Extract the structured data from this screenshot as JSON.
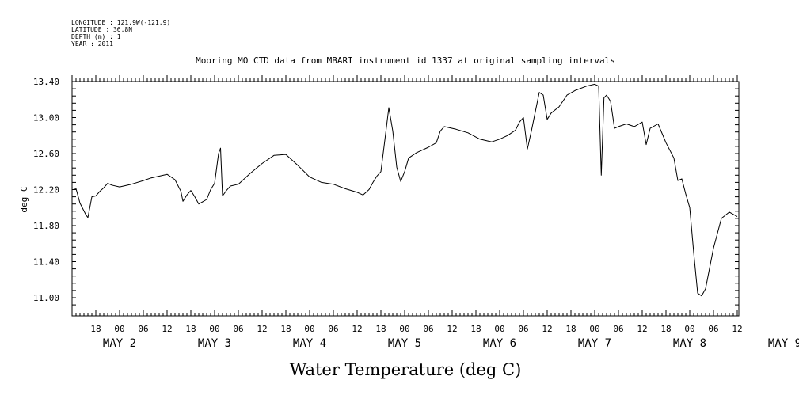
{
  "header": {
    "lines": [
      "LONGITUDE : 121.9W(-121.9)",
      "LATITUDE : 36.8N",
      "DEPTH (m) : 1",
      "YEAR : 2011"
    ]
  },
  "chart_data": {
    "type": "line",
    "title": "Mooring MO CTD data from MBARI instrument id 1337 at original sampling intervals",
    "xlabel": "Water Temperature (deg C)",
    "ylabel": "deg C",
    "ylim": [
      10.85,
      13.4
    ],
    "yticks": [
      "13.40",
      "13.00",
      "12.60",
      "12.20",
      "11.80",
      "11.40",
      "11.00"
    ],
    "xlim": [
      "2011-05-01T12:00",
      "2011-05-08T14:00"
    ],
    "hour_ticks": [
      "18",
      "00",
      "06",
      "12",
      "18",
      "00",
      "06",
      "12",
      "18",
      "00",
      "06",
      "12",
      "18",
      "00",
      "06",
      "12",
      "18",
      "00",
      "06",
      "12",
      "18",
      "00",
      "06",
      "12",
      "18",
      "00",
      "06",
      "12"
    ],
    "day_labels": [
      {
        "text": "MAY  2",
        "x": "2011-05-02T00:00"
      },
      {
        "text": "MAY  3",
        "x": "2011-05-03T00:00"
      },
      {
        "text": "MAY  4",
        "x": "2011-05-04T00:00"
      },
      {
        "text": "MAY  5",
        "x": "2011-05-05T00:00"
      },
      {
        "text": "MAY  6",
        "x": "2011-05-06T00:00"
      },
      {
        "text": "MAY  7",
        "x": "2011-05-07T00:00"
      },
      {
        "text": "MAY  8",
        "x": "2011-05-08T00:00"
      },
      {
        "text": "MAY  9",
        "x": "2011-05-09T00:00"
      }
    ],
    "grid": false,
    "series": [
      {
        "color": "#000000",
        "points": [
          [
            "2011-05-01T12:00",
            12.22
          ],
          [
            "2011-05-01T13:00",
            12.21
          ],
          [
            "2011-05-01T14:00",
            12.05
          ],
          [
            "2011-05-01T15:30",
            11.92
          ],
          [
            "2011-05-01T16:00",
            11.89
          ],
          [
            "2011-05-01T17:00",
            12.12
          ],
          [
            "2011-05-01T18:00",
            12.13
          ],
          [
            "2011-05-01T19:00",
            12.18
          ],
          [
            "2011-05-01T20:00",
            12.22
          ],
          [
            "2011-05-01T21:00",
            12.27
          ],
          [
            "2011-05-01T22:00",
            12.25
          ],
          [
            "2011-05-02T00:00",
            12.23
          ],
          [
            "2011-05-02T03:00",
            12.26
          ],
          [
            "2011-05-02T06:00",
            12.3
          ],
          [
            "2011-05-02T08:00",
            12.33
          ],
          [
            "2011-05-02T12:00",
            12.37
          ],
          [
            "2011-05-02T14:00",
            12.31
          ],
          [
            "2011-05-02T15:30",
            12.18
          ],
          [
            "2011-05-02T16:00",
            12.07
          ],
          [
            "2011-05-02T17:00",
            12.14
          ],
          [
            "2011-05-02T18:00",
            12.19
          ],
          [
            "2011-05-02T19:00",
            12.12
          ],
          [
            "2011-05-02T20:00",
            12.04
          ],
          [
            "2011-05-02T22:00",
            12.09
          ],
          [
            "2011-05-02T23:00",
            12.2
          ],
          [
            "2011-05-03T00:00",
            12.27
          ],
          [
            "2011-05-03T01:00",
            12.6
          ],
          [
            "2011-05-03T01:30",
            12.66
          ],
          [
            "2011-05-03T02:00",
            12.13
          ],
          [
            "2011-05-03T03:00",
            12.19
          ],
          [
            "2011-05-03T04:00",
            12.24
          ],
          [
            "2011-05-03T06:00",
            12.26
          ],
          [
            "2011-05-03T09:00",
            12.38
          ],
          [
            "2011-05-03T12:00",
            12.49
          ],
          [
            "2011-05-03T15:00",
            12.58
          ],
          [
            "2011-05-03T18:00",
            12.59
          ],
          [
            "2011-05-03T21:00",
            12.47
          ],
          [
            "2011-05-04T00:00",
            12.34
          ],
          [
            "2011-05-04T03:00",
            12.28
          ],
          [
            "2011-05-04T06:00",
            12.26
          ],
          [
            "2011-05-04T09:00",
            12.21
          ],
          [
            "2011-05-04T12:00",
            12.17
          ],
          [
            "2011-05-04T13:30",
            12.14
          ],
          [
            "2011-05-04T15:00",
            12.2
          ],
          [
            "2011-05-04T16:00",
            12.28
          ],
          [
            "2011-05-04T17:00",
            12.35
          ],
          [
            "2011-05-04T18:00",
            12.4
          ],
          [
            "2011-05-04T19:00",
            12.75
          ],
          [
            "2011-05-04T20:00",
            13.11
          ],
          [
            "2011-05-04T21:00",
            12.85
          ],
          [
            "2011-05-04T22:00",
            12.45
          ],
          [
            "2011-05-04T23:00",
            12.29
          ],
          [
            "2011-05-05T00:00",
            12.4
          ],
          [
            "2011-05-05T01:00",
            12.55
          ],
          [
            "2011-05-05T03:00",
            12.61
          ],
          [
            "2011-05-05T06:00",
            12.67
          ],
          [
            "2011-05-05T08:00",
            12.72
          ],
          [
            "2011-05-05T09:00",
            12.85
          ],
          [
            "2011-05-05T10:00",
            12.9
          ],
          [
            "2011-05-05T13:00",
            12.87
          ],
          [
            "2011-05-05T16:00",
            12.83
          ],
          [
            "2011-05-05T19:00",
            12.76
          ],
          [
            "2011-05-05T22:00",
            12.73
          ],
          [
            "2011-05-06T00:00",
            12.76
          ],
          [
            "2011-05-06T02:00",
            12.8
          ],
          [
            "2011-05-06T04:00",
            12.86
          ],
          [
            "2011-05-06T05:00",
            12.95
          ],
          [
            "2011-05-06T06:00",
            13.0
          ],
          [
            "2011-05-06T07:00",
            12.65
          ],
          [
            "2011-05-06T08:00",
            12.85
          ],
          [
            "2011-05-06T10:00",
            13.28
          ],
          [
            "2011-05-06T11:00",
            13.25
          ],
          [
            "2011-05-06T12:00",
            12.98
          ],
          [
            "2011-05-06T13:00",
            13.05
          ],
          [
            "2011-05-06T15:00",
            13.12
          ],
          [
            "2011-05-06T17:00",
            13.25
          ],
          [
            "2011-05-06T19:00",
            13.3
          ],
          [
            "2011-05-06T22:00",
            13.35
          ],
          [
            "2011-05-07T00:00",
            13.37
          ],
          [
            "2011-05-07T01:00",
            13.35
          ],
          [
            "2011-05-07T01:40",
            12.36
          ],
          [
            "2011-05-07T02:20",
            13.22
          ],
          [
            "2011-05-07T03:00",
            13.25
          ],
          [
            "2011-05-07T04:00",
            13.18
          ],
          [
            "2011-05-07T05:00",
            12.88
          ],
          [
            "2011-05-07T06:00",
            12.9
          ],
          [
            "2011-05-07T08:00",
            12.93
          ],
          [
            "2011-05-07T10:00",
            12.9
          ],
          [
            "2011-05-07T12:00",
            12.95
          ],
          [
            "2011-05-07T13:00",
            12.7
          ],
          [
            "2011-05-07T14:00",
            12.88
          ],
          [
            "2011-05-07T16:00",
            12.93
          ],
          [
            "2011-05-07T18:00",
            12.72
          ],
          [
            "2011-05-07T20:00",
            12.55
          ],
          [
            "2011-05-07T21:00",
            12.3
          ],
          [
            "2011-05-07T22:00",
            12.32
          ],
          [
            "2011-05-07T23:00",
            12.15
          ],
          [
            "2011-05-08T00:00",
            12.0
          ],
          [
            "2011-05-08T01:00",
            11.5
          ],
          [
            "2011-05-08T02:00",
            11.05
          ],
          [
            "2011-05-08T03:00",
            11.02
          ],
          [
            "2011-05-08T04:00",
            11.1
          ],
          [
            "2011-05-08T06:00",
            11.55
          ],
          [
            "2011-05-08T08:00",
            11.88
          ],
          [
            "2011-05-08T10:00",
            11.95
          ],
          [
            "2011-05-08T12:00",
            11.9
          ]
        ]
      }
    ]
  }
}
